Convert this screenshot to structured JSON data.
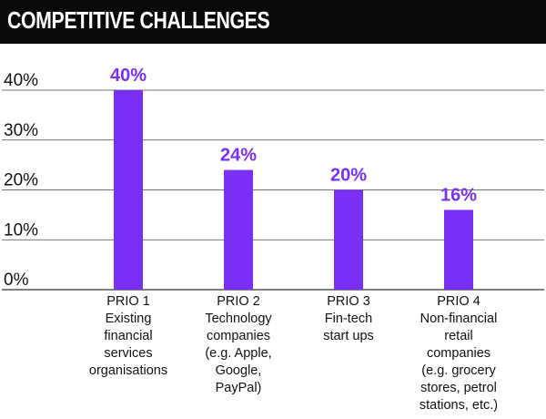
{
  "header": {
    "title": "COMPETITIVE CHALLENGES"
  },
  "colors": {
    "bar": "#7a2ff7",
    "label": "#7a2ff7",
    "header_bg": "#0a0a0a"
  },
  "chart_data": {
    "type": "bar",
    "title": "COMPETITIVE CHALLENGES",
    "xlabel": "",
    "ylabel": "",
    "ylim": [
      0,
      40
    ],
    "yticks": [
      "0%",
      "10%",
      "20%",
      "30%",
      "40%"
    ],
    "yticks_values": [
      0,
      10,
      20,
      30,
      40
    ],
    "grid": true,
    "categories": [
      [
        "PRIO 1",
        "Existing",
        "financial",
        "services",
        "organisations"
      ],
      [
        "PRIO 2",
        "Technology",
        "companies",
        "(e.g. Apple,",
        "Google,",
        "PayPal)"
      ],
      [
        "PRIO 3",
        "Fin-tech",
        "start ups"
      ],
      [
        "PRIO 4",
        "Non-financial",
        "retail",
        "companies",
        "(e.g. grocery",
        "stores, petrol",
        "stations, etc.)"
      ]
    ],
    "values": [
      40,
      24,
      20,
      16
    ],
    "data_labels": [
      "40%",
      "24%",
      "20%",
      "16%"
    ]
  }
}
